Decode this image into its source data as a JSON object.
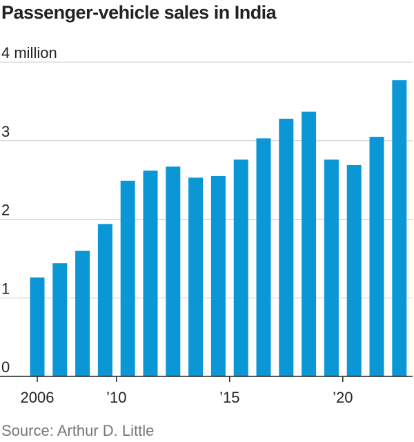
{
  "chart_data": {
    "type": "bar",
    "title": "Passenger-vehicle sales in India",
    "source": "Source: Arthur D. Little",
    "unit_label": "4 million",
    "y_ticks": [
      {
        "value": 0,
        "label": "0"
      },
      {
        "value": 1,
        "label": "1"
      },
      {
        "value": 2,
        "label": "2"
      },
      {
        "value": 3,
        "label": "3"
      },
      {
        "value": 4,
        "label": "4 million"
      }
    ],
    "x_ticks": [
      {
        "year": 2006,
        "label": "2006"
      },
      {
        "year": 2010,
        "label": "’10"
      },
      {
        "year": 2015,
        "label": "’15"
      },
      {
        "year": 2020,
        "label": "’20"
      }
    ],
    "categories": [
      2006,
      2007,
      2008,
      2009,
      2010,
      2011,
      2012,
      2013,
      2014,
      2015,
      2016,
      2017,
      2018,
      2019,
      2020,
      2021,
      2022
    ],
    "values": [
      1.26,
      1.44,
      1.6,
      1.94,
      2.49,
      2.62,
      2.67,
      2.53,
      2.55,
      2.76,
      3.03,
      3.28,
      3.37,
      2.76,
      2.69,
      3.05,
      3.77
    ],
    "ylim": [
      0,
      4
    ],
    "grid": true,
    "bar_color": "#0b97d6"
  }
}
